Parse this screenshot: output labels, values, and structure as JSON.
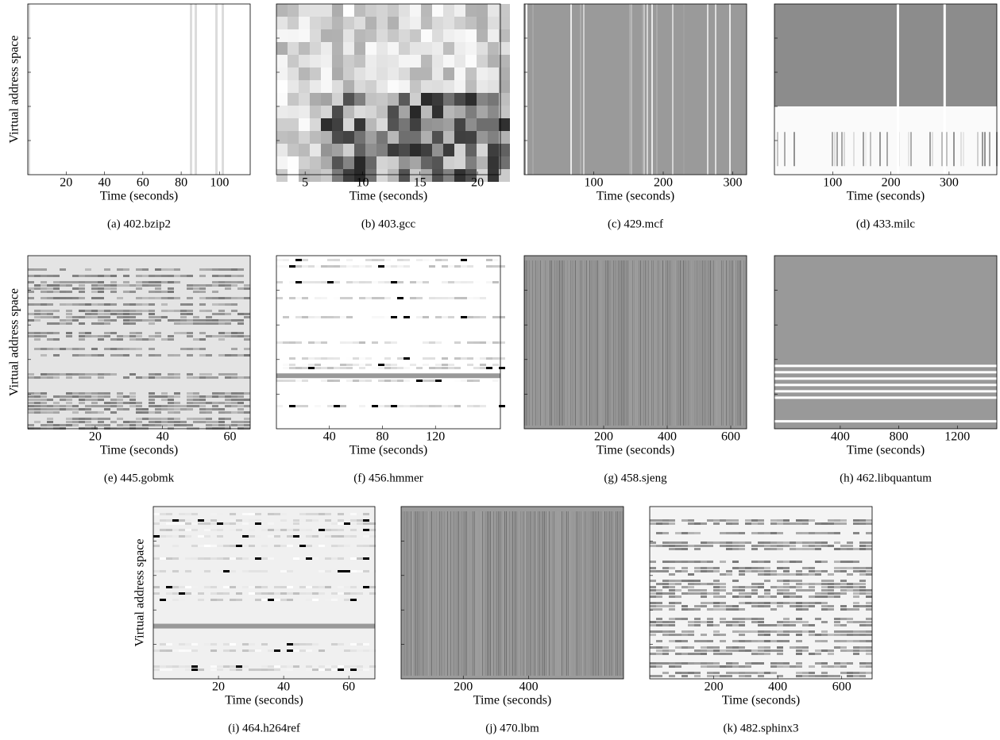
{
  "chart_data": [
    {
      "type": "heatmap",
      "caption": "(a)  402.bzip2",
      "xlabel": "Time (seconds)",
      "ylabel": "Virtual address space",
      "xlim": [
        0,
        116
      ],
      "xticks": [
        20,
        40,
        60,
        80,
        100
      ],
      "color": "#ffffff"
    },
    {
      "type": "heatmap",
      "caption": "(b)  403.gcc",
      "xlabel": "Time (seconds)",
      "xlim": [
        2.5,
        22
      ],
      "xticks": [
        5,
        10,
        15,
        20
      ],
      "color": "#d8d8d8"
    },
    {
      "type": "heatmap",
      "caption": "(c)  429.mcf",
      "xlabel": "Time (seconds)",
      "xlim": [
        0,
        320
      ],
      "xticks": [
        100,
        200,
        300
      ],
      "color": "#9a9a9a"
    },
    {
      "type": "heatmap",
      "caption": "(d)  433.milc",
      "xlabel": "Time (seconds)",
      "xlim": [
        0,
        382
      ],
      "xticks": [
        100,
        200,
        300
      ],
      "color": "#8c8c8c"
    },
    {
      "type": "heatmap",
      "caption": "(e)  445.gobmk",
      "xlabel": "Time (seconds)",
      "ylabel": "Virtual address space",
      "xlim": [
        0,
        66
      ],
      "xticks": [
        20,
        40,
        60
      ],
      "color": "#e4e4e4"
    },
    {
      "type": "heatmap",
      "caption": "(f)  456.hmmer",
      "xlabel": "Time (seconds)",
      "xlim": [
        0,
        169
      ],
      "xticks": [
        40,
        80,
        120
      ],
      "color": "#ffffff"
    },
    {
      "type": "heatmap",
      "caption": "(g)  458.sjeng",
      "xlabel": "Time (seconds)",
      "xlim": [
        -50,
        650
      ],
      "xticks": [
        200,
        400,
        600
      ],
      "color": "#9a9a9a"
    },
    {
      "type": "heatmap",
      "caption": "(h)  462.libquantum",
      "xlabel": "Time (seconds)",
      "xlim": [
        -50,
        1470
      ],
      "xticks": [
        400,
        800,
        1200
      ],
      "color": "#999999"
    },
    {
      "type": "heatmap",
      "caption": "(i)  464.h264ref",
      "xlabel": "Time (seconds)",
      "ylabel": "Virtual address space",
      "xlim": [
        0,
        68
      ],
      "xticks": [
        20,
        40,
        60
      ],
      "color": "#f0f0f0"
    },
    {
      "type": "heatmap",
      "caption": "(j)  470.lbm",
      "xlabel": "Time (seconds)",
      "xlim": [
        10,
        690
      ],
      "xticks": [
        200,
        400
      ],
      "color": "#9c9c9c"
    },
    {
      "type": "heatmap",
      "caption": "(k)  482.sphinx3",
      "xlabel": "Time (seconds)",
      "xlim": [
        0,
        695
      ],
      "xticks": [
        200,
        400,
        600
      ],
      "color": "#f4f4f4"
    }
  ]
}
